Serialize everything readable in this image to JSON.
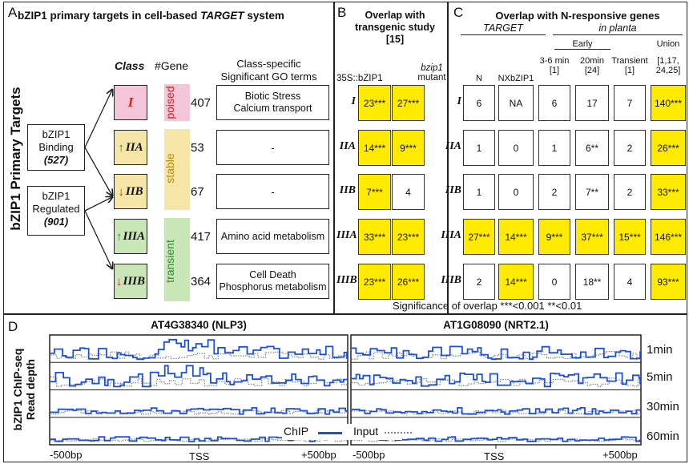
{
  "panelA": {
    "letter": "A",
    "title_pre": "bZIP1 primary targets in cell-based ",
    "title_em": "TARGET",
    "title_post": " system",
    "vertical_title": "bZIP1 Primary Targets",
    "binding_label": "bZIP1\nBinding",
    "binding_count": "(527)",
    "regulated_label": "bZIP1\nRegulated",
    "regulated_count": "(901)",
    "hdr_class": "Class",
    "hdr_gene": "#Gene",
    "hdr_go": "Class-specific\nSignificant GO terms",
    "groups": [
      {
        "name": "poised",
        "color": "#cc2222",
        "bg": "#f2c6d8"
      },
      {
        "name": "stable",
        "color": "#b8860b",
        "bg": "#f5e6a8"
      },
      {
        "name": "transient",
        "color": "#2e8b2e",
        "bg": "#c9e6b8"
      }
    ],
    "classes": [
      {
        "label": "I",
        "arrow": "",
        "genes": "407",
        "go": "Biotic Stress\nCalcium transport"
      },
      {
        "label": "IIA",
        "arrow": "up",
        "genes": "53",
        "go": "-"
      },
      {
        "label": "IIB",
        "arrow": "down",
        "genes": "67",
        "go": "-"
      },
      {
        "label": "IIIA",
        "arrow": "up",
        "genes": "417",
        "go": "Amino acid metabolism"
      },
      {
        "label": "IIIB",
        "arrow": "down",
        "genes": "364",
        "go": "Cell Death\nPhosphorus metabolism"
      }
    ]
  },
  "panelB": {
    "letter": "B",
    "title": "Overlap with\ntransgenic study\n[15]",
    "col1": "35S::bZIP1",
    "col2a": "bzip1",
    "col2b": "mutant",
    "rows": [
      {
        "label": "I",
        "a": "23***",
        "ay": true,
        "b": "27***",
        "by": true
      },
      {
        "label": "IIA",
        "a": "14***",
        "ay": true,
        "b": "9***",
        "by": true
      },
      {
        "label": "IIB",
        "a": "7***",
        "ay": true,
        "b": "4",
        "by": false
      },
      {
        "label": "IIIA",
        "a": "33***",
        "ay": true,
        "b": "23***",
        "by": true
      },
      {
        "label": "IIIB",
        "a": "23***",
        "ay": true,
        "b": "26***",
        "by": true
      }
    ]
  },
  "panelC": {
    "letter": "C",
    "title": "Overlap with N-responsive genes",
    "target": "TARGET",
    "inplanta": "in planta",
    "early": "Early",
    "union": "Union",
    "cols": [
      "N",
      "NXbZIP1",
      "3-6 min\n[1]",
      "20min\n[24]",
      "Transient\n[1]",
      "[1,17,\n24,25]"
    ],
    "rows": [
      {
        "label": "I",
        "v": [
          "6",
          "NA",
          "6",
          "17",
          "7",
          "140***"
        ],
        "y": [
          false,
          false,
          false,
          false,
          false,
          true
        ]
      },
      {
        "label": "IIA",
        "v": [
          "1",
          "0",
          "1",
          "6**",
          "2",
          "26***"
        ],
        "y": [
          false,
          false,
          false,
          false,
          false,
          true
        ]
      },
      {
        "label": "IIB",
        "v": [
          "1",
          "0",
          "2",
          "7**",
          "2",
          "33***"
        ],
        "y": [
          false,
          false,
          false,
          false,
          false,
          true
        ]
      },
      {
        "label": "IIIA",
        "v": [
          "27***",
          "14***",
          "9***",
          "37***",
          "15***",
          "146***"
        ],
        "y": [
          true,
          true,
          true,
          true,
          true,
          true
        ]
      },
      {
        "label": "IIIB",
        "v": [
          "2",
          "14***",
          "0",
          "18**",
          "4",
          "93***"
        ],
        "y": [
          false,
          true,
          false,
          false,
          false,
          true
        ]
      }
    ],
    "significance": "Significance of overlap ***<0.001 **<0.01"
  },
  "panelD": {
    "letter": "D",
    "ylabel1": "bZIP1 ChIP-seq",
    "ylabel2": "Read depth",
    "gene1": "AT4G38340 (NLP3)",
    "gene2": "AT1G08090 (NRT2.1)",
    "times": [
      "1min",
      "5min",
      "30min",
      "60min"
    ],
    "xleft": "-500bp",
    "xmid": "TSS",
    "xright": "+500bp",
    "legend_chip": "ChIP",
    "legend_input": "Input",
    "chip_color": "#1a4fe0",
    "input_color": "#888888"
  }
}
